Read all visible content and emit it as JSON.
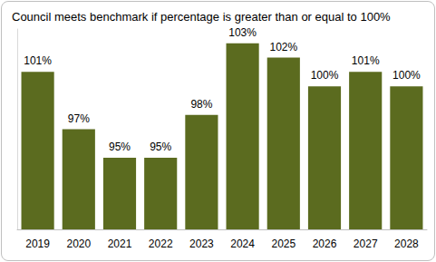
{
  "chart_data": {
    "type": "bar",
    "title": "Council meets benchmark if percentage is greater than or equal to 100%",
    "categories": [
      "2019",
      "2020",
      "2021",
      "2022",
      "2023",
      "2024",
      "2025",
      "2026",
      "2027",
      "2028"
    ],
    "values": [
      101,
      97,
      95,
      95,
      98,
      103,
      102,
      100,
      101,
      100
    ],
    "value_labels": [
      "101%",
      "97%",
      "95%",
      "95%",
      "98%",
      "103%",
      "102%",
      "100%",
      "101%",
      "100%"
    ],
    "color": "#5b6b1f",
    "ylim": [
      90,
      104
    ],
    "grid": false,
    "data_labels": true,
    "tick_labels": "x"
  }
}
